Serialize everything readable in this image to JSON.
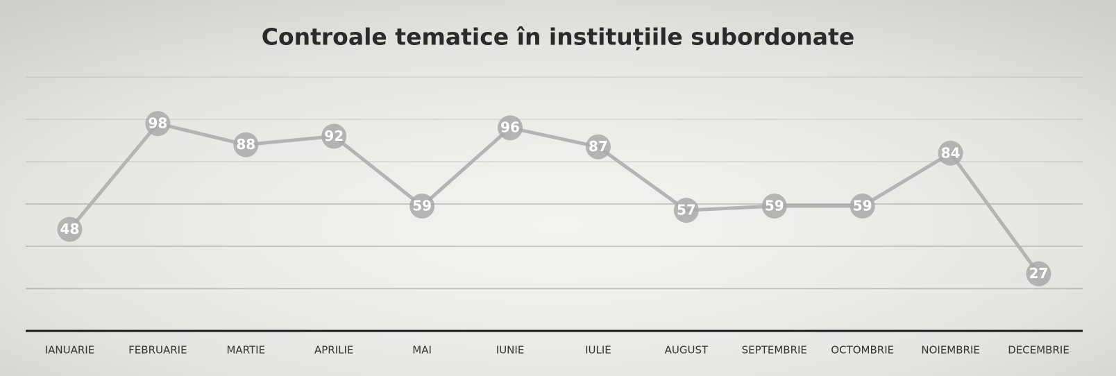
{
  "chart_data": {
    "type": "line",
    "title": "Controale tematice în instituțiile subordonate",
    "categories": [
      "IANUARIE",
      "FEBRUARIE",
      "MARTIE",
      "APRILIE",
      "MAI",
      "IUNIE",
      "IULIE",
      "AUGUST",
      "SEPTEMBRIE",
      "OCTOMBRIE",
      "NOIEMBRIE",
      "DECEMBRIE"
    ],
    "values": [
      48,
      98,
      88,
      92,
      59,
      96,
      87,
      57,
      59,
      59,
      84,
      27
    ],
    "color": "#b4b4b4",
    "ylim": [
      0,
      120
    ],
    "yticks": [
      0,
      20,
      40,
      60,
      80,
      100,
      120
    ],
    "grid": true
  }
}
